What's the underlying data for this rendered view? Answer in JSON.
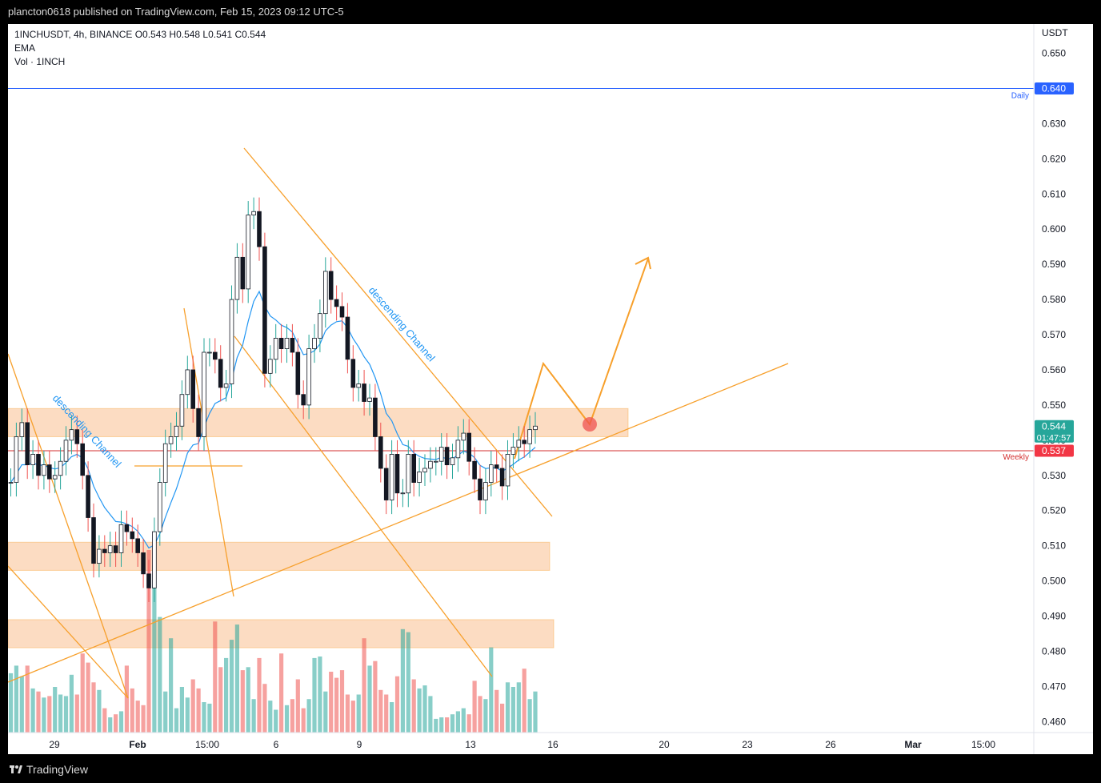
{
  "header": {
    "publish_line": "plancton0618 published on TradingView.com, Feb 15, 2023 09:12 UTC-5"
  },
  "legend": {
    "symbol_line": "1INCHUSDT, 4h, BINANCE  O0.543  H0.548  L0.541  C0.544",
    "ema_label": "EMA",
    "vol_label": "Vol · 1INCH"
  },
  "footer": {
    "brand": "TradingView"
  },
  "colors": {
    "up": "#26a69a",
    "down": "#ef5350",
    "candle_body": "#131722",
    "ema": "#2196f3",
    "drawing": "#f7a02c",
    "zone": "rgba(247,150,70,0.33)",
    "daily_line": "#2962ff",
    "weekly_line": "#d32f2f",
    "last_price": "#26a69a"
  },
  "chart_data": {
    "type": "candlestick",
    "symbol": "1INCHUSDT",
    "timeframe": "4h",
    "exchange": "BINANCE",
    "y_axis_unit": "USDT",
    "ylim": [
      0.458,
      0.658
    ],
    "y_ticks": [
      "0.650",
      "0.640",
      "0.630",
      "0.620",
      "0.610",
      "0.600",
      "0.590",
      "0.580",
      "0.570",
      "0.560",
      "0.550",
      "0.540",
      "0.530",
      "0.520",
      "0.510",
      "0.500",
      "0.490",
      "0.480",
      "0.470",
      "0.460"
    ],
    "x_ticks": [
      "29",
      "Feb",
      "15:00",
      "6",
      "9",
      "13",
      "16",
      "20",
      "23",
      "26",
      "Mar",
      "15:00"
    ],
    "last": {
      "open": 0.543,
      "high": 0.548,
      "low": 0.541,
      "close": 0.544,
      "label": "0.544",
      "countdown": "01:47:57"
    },
    "levels": [
      {
        "price": 0.64,
        "label": "0.640",
        "tag": "Daily"
      },
      {
        "price": 0.537,
        "label": "0.537",
        "tag": "Weekly"
      }
    ],
    "zones": [
      {
        "from": 0.541,
        "to": 0.549
      },
      {
        "from": 0.503,
        "to": 0.511
      },
      {
        "from": 0.481,
        "to": 0.489
      }
    ],
    "annotations": [
      {
        "text": "descending Channel",
        "position": "left"
      },
      {
        "text": "descending Channel",
        "position": "center"
      }
    ],
    "closes": [
      0.528,
      0.541,
      0.545,
      0.533,
      0.536,
      0.53,
      0.533,
      0.529,
      0.53,
      0.534,
      0.54,
      0.543,
      0.539,
      0.53,
      0.518,
      0.505,
      0.509,
      0.508,
      0.51,
      0.508,
      0.516,
      0.514,
      0.512,
      0.508,
      0.502,
      0.498,
      0.514,
      0.528,
      0.539,
      0.541,
      0.544,
      0.553,
      0.56,
      0.549,
      0.541,
      0.565,
      0.565,
      0.563,
      0.555,
      0.556,
      0.58,
      0.592,
      0.583,
      0.604,
      0.605,
      0.595,
      0.559,
      0.563,
      0.569,
      0.566,
      0.569,
      0.565,
      0.553,
      0.55,
      0.566,
      0.569,
      0.576,
      0.588,
      0.58,
      0.578,
      0.575,
      0.563,
      0.555,
      0.556,
      0.551,
      0.552,
      0.541,
      0.532,
      0.523,
      0.536,
      0.525,
      0.525,
      0.536,
      0.528,
      0.531,
      0.532,
      0.534,
      0.534,
      0.538,
      0.533,
      0.535,
      0.54,
      0.542,
      0.534,
      0.529,
      0.523,
      0.528,
      0.533,
      0.532,
      0.527,
      0.536,
      0.538,
      0.54,
      0.539,
      0.543,
      0.544
    ],
    "volume_scale": [
      0.39,
      0.44,
      0.37,
      0.44,
      0.29,
      0.27,
      0.23,
      0.24,
      0.3,
      0.25,
      0.24,
      0.38,
      0.25,
      0.52,
      0.46,
      0.33,
      0.28,
      0.16,
      0.1,
      0.12,
      0.14,
      0.44,
      0.29,
      0.21,
      0.18,
      1.2,
      1.1,
      0.76,
      0.27,
      0.62,
      0.16,
      0.3,
      0.23,
      0.35,
      0.29,
      0.2,
      0.19,
      0.73,
      0.43,
      0.49,
      0.61,
      0.71,
      0.41,
      0.43,
      0.22,
      0.49,
      0.32,
      0.21,
      0.15,
      0.52,
      0.18,
      0.22,
      0.35,
      0.16,
      0.22,
      0.49,
      0.5,
      0.27,
      0.4,
      0.36,
      0.41,
      0.25,
      0.21,
      0.25,
      0.62,
      0.44,
      0.47,
      0.28,
      0.25,
      0.2,
      0.37,
      0.68,
      0.66,
      0.35,
      0.29,
      0.31,
      0.24,
      0.09,
      0.1,
      0.1,
      0.12,
      0.14,
      0.16,
      0.12,
      0.34,
      0.24,
      0.22,
      0.56,
      0.28,
      0.19,
      0.33,
      0.3,
      0.33,
      0.42,
      0.22,
      0.27
    ]
  }
}
